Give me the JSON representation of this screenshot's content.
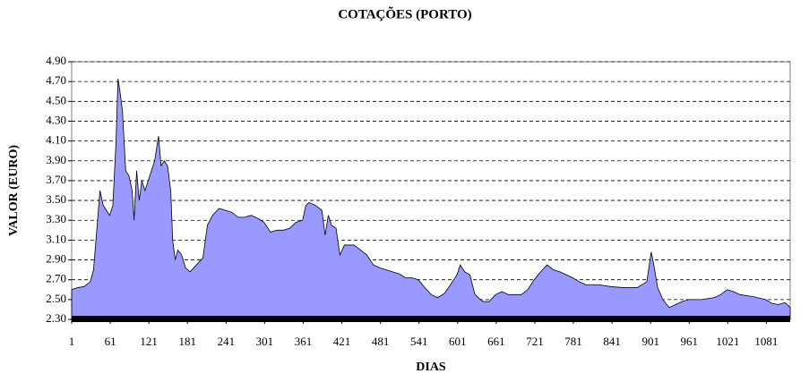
{
  "chart_data": {
    "type": "area",
    "title": "COTAÇÕES (PORTO)",
    "x_label": "DIAS",
    "y_label": "VALOR (EURO)",
    "color": "#9999ff",
    "grid": true,
    "xlim": [
      1,
      1118
    ],
    "ylim": [
      2.3,
      4.9
    ],
    "xticks": [
      1,
      61,
      121,
      181,
      241,
      301,
      361,
      421,
      481,
      541,
      601,
      661,
      721,
      781,
      841,
      901,
      961,
      1021,
      1081
    ],
    "yticks": [
      {
        "value": 2.3,
        "label": "2.30"
      },
      {
        "value": 2.5,
        "label": "2.50"
      },
      {
        "value": 2.7,
        "label": "2.70"
      },
      {
        "value": 2.9,
        "label": "2.90"
      },
      {
        "value": 3.1,
        "label": "3.10"
      },
      {
        "value": 3.3,
        "label": "3.30"
      },
      {
        "value": 3.5,
        "label": "3.50"
      },
      {
        "value": 3.7,
        "label": "3.70"
      },
      {
        "value": 3.9,
        "label": "3.90"
      },
      {
        "value": 4.1,
        "label": "4.10"
      },
      {
        "value": 4.3,
        "label": "4.30"
      },
      {
        "value": 4.5,
        "label": "4.50"
      },
      {
        "value": 4.7,
        "label": "4.70"
      },
      {
        "value": 4.9,
        "label": "4.90"
      }
    ],
    "x": [
      1,
      10,
      20,
      30,
      35,
      40,
      45,
      50,
      55,
      60,
      65,
      70,
      73,
      76,
      80,
      85,
      90,
      95,
      98,
      102,
      106,
      110,
      115,
      120,
      125,
      130,
      136,
      140,
      145,
      150,
      155,
      158,
      162,
      166,
      172,
      178,
      185,
      195,
      205,
      212,
      220,
      230,
      240,
      250,
      260,
      270,
      280,
      290,
      300,
      310,
      320,
      330,
      340,
      350,
      360,
      365,
      370,
      380,
      390,
      395,
      400,
      405,
      412,
      418,
      425,
      440,
      450,
      460,
      470,
      480,
      490,
      500,
      510,
      520,
      530,
      540,
      550,
      560,
      570,
      580,
      590,
      600,
      605,
      612,
      620,
      628,
      640,
      650,
      660,
      670,
      680,
      690,
      700,
      710,
      720,
      730,
      740,
      750,
      760,
      770,
      780,
      790,
      800,
      820,
      840,
      860,
      880,
      895,
      902,
      906,
      912,
      920,
      930,
      940,
      950,
      960,
      980,
      1000,
      1010,
      1020,
      1030,
      1040,
      1060,
      1080,
      1090,
      1100,
      1110,
      1118
    ],
    "values": [
      2.6,
      2.62,
      2.63,
      2.68,
      2.8,
      3.2,
      3.6,
      3.45,
      3.4,
      3.35,
      3.45,
      4.1,
      4.73,
      4.6,
      4.4,
      3.8,
      3.75,
      3.6,
      3.3,
      3.8,
      3.5,
      3.7,
      3.6,
      3.7,
      3.8,
      3.9,
      4.15,
      3.85,
      3.9,
      3.85,
      3.6,
      3.1,
      2.9,
      3.0,
      2.95,
      2.82,
      2.78,
      2.85,
      2.92,
      3.25,
      3.35,
      3.42,
      3.4,
      3.38,
      3.33,
      3.33,
      3.35,
      3.32,
      3.28,
      3.18,
      3.2,
      3.2,
      3.22,
      3.28,
      3.3,
      3.45,
      3.48,
      3.45,
      3.4,
      3.15,
      3.35,
      3.25,
      3.22,
      2.95,
      3.05,
      3.05,
      3.0,
      2.95,
      2.85,
      2.82,
      2.8,
      2.78,
      2.76,
      2.72,
      2.72,
      2.7,
      2.62,
      2.55,
      2.52,
      2.56,
      2.65,
      2.75,
      2.85,
      2.78,
      2.75,
      2.55,
      2.48,
      2.48,
      2.55,
      2.58,
      2.55,
      2.55,
      2.55,
      2.6,
      2.7,
      2.78,
      2.85,
      2.8,
      2.78,
      2.75,
      2.72,
      2.68,
      2.65,
      2.65,
      2.63,
      2.62,
      2.62,
      2.68,
      2.98,
      2.85,
      2.62,
      2.5,
      2.42,
      2.45,
      2.48,
      2.5,
      2.5,
      2.52,
      2.55,
      2.6,
      2.58,
      2.55,
      2.53,
      2.5,
      2.46,
      2.45,
      2.47,
      2.42
    ]
  }
}
